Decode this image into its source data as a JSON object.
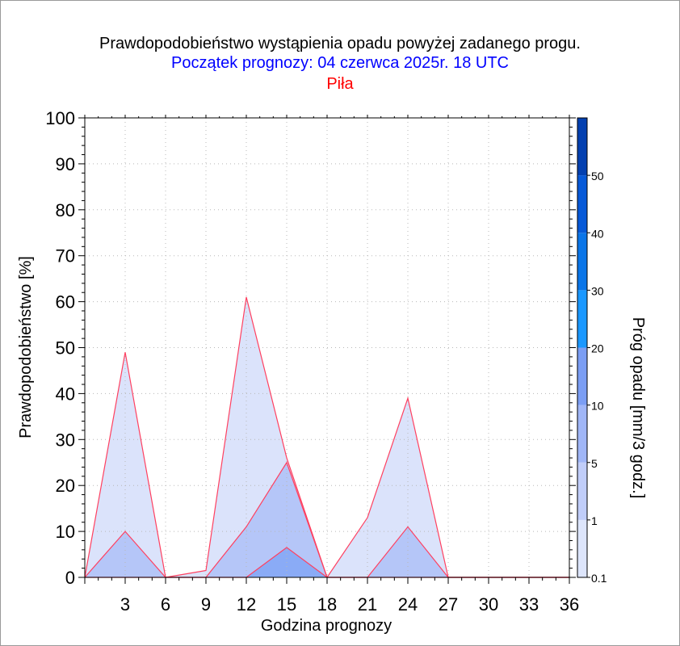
{
  "chart_data": {
    "type": "area",
    "title": "Prawdopodobieństwo wystąpienia opadu powyżej zadanego progu.",
    "subtitle": "Początek prognozy: 04 czerwca 2025r. 18 UTC",
    "location": "Piła",
    "xlabel": "Godzina prognozy",
    "ylabel": "Prawdopodobieństwo [%]",
    "colorbar_label": "Próg opadu [mm/3 godz.]",
    "x": [
      0,
      3,
      6,
      9,
      12,
      15,
      18,
      21,
      24,
      27,
      30,
      33,
      36
    ],
    "xlim": [
      0,
      36
    ],
    "ylim": [
      0,
      100
    ],
    "x_ticks": [
      3,
      6,
      9,
      12,
      15,
      18,
      21,
      24,
      27,
      30,
      33,
      36
    ],
    "y_ticks": [
      0,
      10,
      20,
      30,
      40,
      50,
      60,
      70,
      80,
      90,
      100
    ],
    "grid": true,
    "series": [
      {
        "threshold": 0.1,
        "color": "#dbe3fb",
        "values": [
          0,
          49,
          0,
          1.5,
          61,
          26,
          0,
          13,
          39,
          0,
          0,
          0,
          0
        ]
      },
      {
        "threshold": 1,
        "color": "#b5c6f8",
        "values": [
          0,
          10,
          0,
          0,
          11,
          25,
          0,
          0,
          11,
          0,
          0,
          0,
          0
        ]
      },
      {
        "threshold": 5,
        "color": "#8aabf6",
        "values": [
          0,
          0,
          0,
          0,
          0,
          6.5,
          0,
          0,
          0,
          0,
          0,
          0,
          0
        ]
      }
    ],
    "colorbar": {
      "ticks": [
        "0.1",
        "1",
        "5",
        "10",
        "20",
        "30",
        "40",
        "50"
      ],
      "colors": [
        "#dde5fb",
        "#c0cdf9",
        "#a0b6f7",
        "#7b9ef4",
        "#1a98ff",
        "#0a75e8",
        "#0659d8",
        "#0340b0"
      ]
    }
  }
}
